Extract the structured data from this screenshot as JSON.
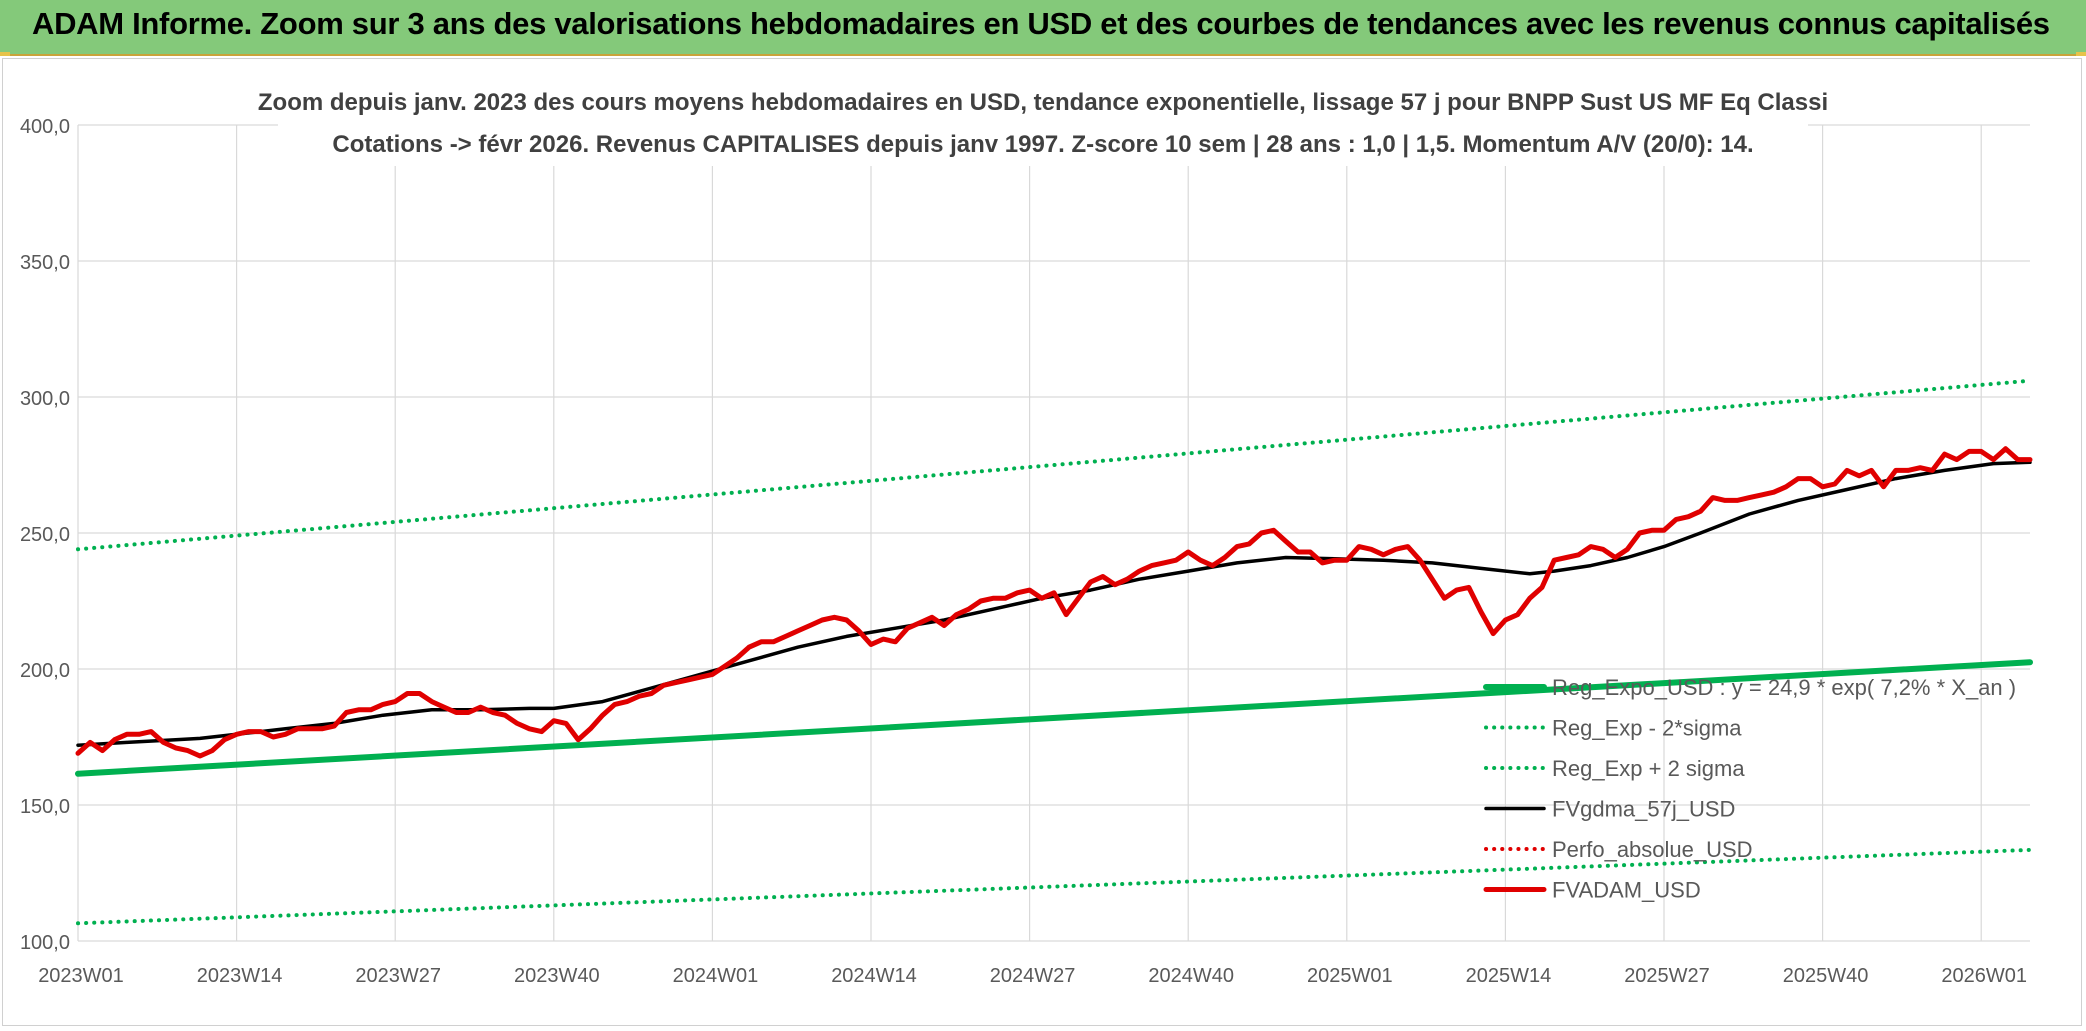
{
  "banner": {
    "title": "ADAM Informe. Zoom sur 3 ans des valorisations hebdomadaires en USD et des courbes de tendances avec les revenus connus capitalisés"
  },
  "colors": {
    "banner_bg": "#84c97a",
    "grid": "#d9d9d9",
    "axis_text": "#595959",
    "title_text": "#404040",
    "reg_line": "#00b050",
    "black_line": "#000000",
    "red_line": "#e00000"
  },
  "chart_data": {
    "type": "line",
    "title_line1": "Zoom depuis janv. 2023 des cours moyens hebdomadaires en USD, tendance exponentielle, lissage 57 j pour BNPP Sust US MF Eq Classi",
    "title_line2": "Cotations -> févr 2026. Revenus CAPITALISES depuis janv 1997. Z-score 10 sem | 28 ans : 1,0 | 1,5. Momentum A/V (20/0): 14.",
    "ylim": [
      100,
      400
    ],
    "yticks": [
      "100,0",
      "150,0",
      "200,0",
      "250,0",
      "300,0",
      "350,0",
      "400,0"
    ],
    "ytick_values": [
      100,
      150,
      200,
      250,
      300,
      350,
      400
    ],
    "x_range": [
      0,
      160
    ],
    "xticks": [
      {
        "label": "2023W01",
        "x": 0
      },
      {
        "label": "2023W14",
        "x": 13
      },
      {
        "label": "2023W27",
        "x": 26
      },
      {
        "label": "2023W40",
        "x": 39
      },
      {
        "label": "2024W01",
        "x": 52
      },
      {
        "label": "2024W14",
        "x": 65
      },
      {
        "label": "2024W27",
        "x": 78
      },
      {
        "label": "2024W40",
        "x": 91
      },
      {
        "label": "2025W01",
        "x": 104
      },
      {
        "label": "2025W14",
        "x": 117
      },
      {
        "label": "2025W27",
        "x": 130
      },
      {
        "label": "2025W40",
        "x": 143
      },
      {
        "label": "2026W01",
        "x": 156
      }
    ],
    "grid": true,
    "legend_position": "bottom-right",
    "series": [
      {
        "name": "Reg_Expo_USD : y = 24,9 * exp( 7,2% *  X_an )",
        "color": "#00b050",
        "style": "solid-thick",
        "points": [
          [
            0,
            161.5
          ],
          [
            160,
            202.5
          ]
        ]
      },
      {
        "name": "Reg_Exp - 2*sigma",
        "color": "#00b050",
        "style": "dotted",
        "points": [
          [
            0,
            106.5
          ],
          [
            160,
            133.5
          ]
        ]
      },
      {
        "name": "Reg_Exp + 2 sigma",
        "color": "#00b050",
        "style": "dotted",
        "points": [
          [
            0,
            244
          ],
          [
            160,
            306
          ]
        ]
      },
      {
        "name": "FVgdma_57j_USD",
        "color": "#000000",
        "style": "solid",
        "points": [
          [
            0,
            172
          ],
          [
            4,
            173
          ],
          [
            8,
            174
          ],
          [
            10,
            174.5
          ],
          [
            13,
            176
          ],
          [
            17,
            178
          ],
          [
            21,
            180
          ],
          [
            25,
            183
          ],
          [
            29,
            185
          ],
          [
            33,
            185
          ],
          [
            37,
            185.5
          ],
          [
            39,
            185.5
          ],
          [
            43,
            188
          ],
          [
            47,
            193
          ],
          [
            51,
            198
          ],
          [
            55,
            203
          ],
          [
            59,
            208
          ],
          [
            63,
            212
          ],
          [
            67,
            215
          ],
          [
            71,
            218
          ],
          [
            75,
            222
          ],
          [
            79,
            226
          ],
          [
            83,
            229
          ],
          [
            87,
            233
          ],
          [
            91,
            236
          ],
          [
            95,
            239
          ],
          [
            99,
            241
          ],
          [
            103,
            240.5
          ],
          [
            107,
            240
          ],
          [
            111,
            239
          ],
          [
            115,
            237
          ],
          [
            119,
            235
          ],
          [
            121,
            236
          ],
          [
            124,
            238
          ],
          [
            127,
            241
          ],
          [
            130,
            245
          ],
          [
            133,
            250
          ],
          [
            137,
            257
          ],
          [
            141,
            262
          ],
          [
            145,
            266
          ],
          [
            149,
            270
          ],
          [
            153,
            273
          ],
          [
            157,
            275.5
          ],
          [
            160,
            276
          ]
        ]
      },
      {
        "name": "Perfo_absolue_USD",
        "color": "#e00000",
        "style": "dotted",
        "points": []
      },
      {
        "name": "FVADAM_USD",
        "color": "#e00000",
        "style": "solid-thick",
        "points": [
          [
            0,
            169
          ],
          [
            1,
            173
          ],
          [
            2,
            170
          ],
          [
            3,
            174
          ],
          [
            4,
            176
          ],
          [
            5,
            176
          ],
          [
            6,
            177
          ],
          [
            7,
            173
          ],
          [
            8,
            171
          ],
          [
            9,
            170
          ],
          [
            10,
            168
          ],
          [
            11,
            170
          ],
          [
            12,
            174
          ],
          [
            13,
            176
          ],
          [
            14,
            177
          ],
          [
            15,
            177
          ],
          [
            16,
            175
          ],
          [
            17,
            176
          ],
          [
            18,
            178
          ],
          [
            19,
            178
          ],
          [
            20,
            178
          ],
          [
            21,
            179
          ],
          [
            22,
            184
          ],
          [
            23,
            185
          ],
          [
            24,
            185
          ],
          [
            25,
            187
          ],
          [
            26,
            188
          ],
          [
            27,
            191
          ],
          [
            28,
            191
          ],
          [
            29,
            188
          ],
          [
            30,
            186
          ],
          [
            31,
            184
          ],
          [
            32,
            184
          ],
          [
            33,
            186
          ],
          [
            34,
            184
          ],
          [
            35,
            183
          ],
          [
            36,
            180
          ],
          [
            37,
            178
          ],
          [
            38,
            177
          ],
          [
            39,
            181
          ],
          [
            40,
            180
          ],
          [
            41,
            174
          ],
          [
            42,
            178
          ],
          [
            43,
            183
          ],
          [
            44,
            187
          ],
          [
            45,
            188
          ],
          [
            46,
            190
          ],
          [
            47,
            191
          ],
          [
            48,
            194
          ],
          [
            49,
            195
          ],
          [
            50,
            196
          ],
          [
            51,
            197
          ],
          [
            52,
            198
          ],
          [
            53,
            201
          ],
          [
            54,
            204
          ],
          [
            55,
            208
          ],
          [
            56,
            210
          ],
          [
            57,
            210
          ],
          [
            58,
            212
          ],
          [
            59,
            214
          ],
          [
            60,
            216
          ],
          [
            61,
            218
          ],
          [
            62,
            219
          ],
          [
            63,
            218
          ],
          [
            64,
            214
          ],
          [
            65,
            209
          ],
          [
            66,
            211
          ],
          [
            67,
            210
          ],
          [
            68,
            215
          ],
          [
            69,
            217
          ],
          [
            70,
            219
          ],
          [
            71,
            216
          ],
          [
            72,
            220
          ],
          [
            73,
            222
          ],
          [
            74,
            225
          ],
          [
            75,
            226
          ],
          [
            76,
            226
          ],
          [
            77,
            228
          ],
          [
            78,
            229
          ],
          [
            79,
            226
          ],
          [
            80,
            228
          ],
          [
            81,
            220
          ],
          [
            82,
            226
          ],
          [
            83,
            232
          ],
          [
            84,
            234
          ],
          [
            85,
            231
          ],
          [
            86,
            233
          ],
          [
            87,
            236
          ],
          [
            88,
            238
          ],
          [
            89,
            239
          ],
          [
            90,
            240
          ],
          [
            91,
            243
          ],
          [
            92,
            240
          ],
          [
            93,
            238
          ],
          [
            94,
            241
          ],
          [
            95,
            245
          ],
          [
            96,
            246
          ],
          [
            97,
            250
          ],
          [
            98,
            251
          ],
          [
            99,
            247
          ],
          [
            100,
            243
          ],
          [
            101,
            243
          ],
          [
            102,
            239
          ],
          [
            103,
            240
          ],
          [
            104,
            240
          ],
          [
            105,
            245
          ],
          [
            106,
            244
          ],
          [
            107,
            242
          ],
          [
            108,
            244
          ],
          [
            109,
            245
          ],
          [
            110,
            240
          ],
          [
            111,
            233
          ],
          [
            112,
            226
          ],
          [
            113,
            229
          ],
          [
            114,
            230
          ],
          [
            115,
            221
          ],
          [
            116,
            213
          ],
          [
            117,
            218
          ],
          [
            118,
            220
          ],
          [
            119,
            226
          ],
          [
            120,
            230
          ],
          [
            121,
            240
          ],
          [
            122,
            241
          ],
          [
            123,
            242
          ],
          [
            124,
            245
          ],
          [
            125,
            244
          ],
          [
            126,
            241
          ],
          [
            127,
            244
          ],
          [
            128,
            250
          ],
          [
            129,
            251
          ],
          [
            130,
            251
          ],
          [
            131,
            255
          ],
          [
            132,
            256
          ],
          [
            133,
            258
          ],
          [
            134,
            263
          ],
          [
            135,
            262
          ],
          [
            136,
            262
          ],
          [
            137,
            263
          ],
          [
            138,
            264
          ],
          [
            139,
            265
          ],
          [
            140,
            267
          ],
          [
            141,
            270
          ],
          [
            142,
            270
          ],
          [
            143,
            267
          ],
          [
            144,
            268
          ],
          [
            145,
            273
          ],
          [
            146,
            271
          ],
          [
            147,
            273
          ],
          [
            148,
            267
          ],
          [
            149,
            273
          ],
          [
            150,
            273
          ],
          [
            151,
            274
          ],
          [
            152,
            273
          ],
          [
            153,
            279
          ],
          [
            154,
            277
          ],
          [
            155,
            280
          ],
          [
            156,
            280
          ],
          [
            157,
            277
          ],
          [
            158,
            281
          ],
          [
            159,
            277
          ],
          [
            160,
            277
          ]
        ]
      }
    ]
  }
}
